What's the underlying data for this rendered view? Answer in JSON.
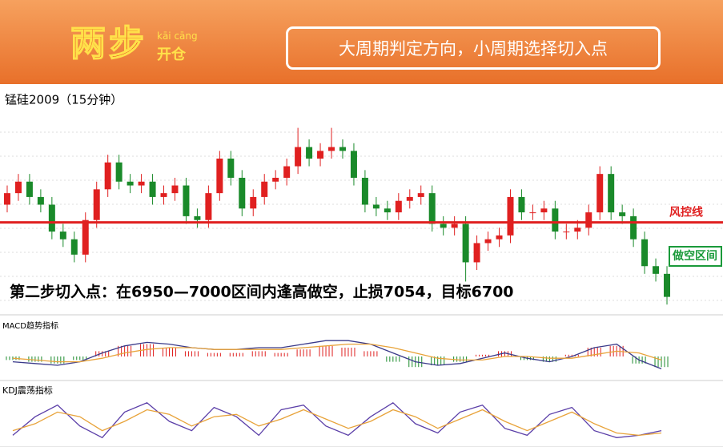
{
  "header": {
    "logo": "两步",
    "logo_pinyin": "kāi cāng",
    "logo_sub": "开仓",
    "slogan": "大周期判定方向，小周期选择切入点"
  },
  "chart_data": {
    "type": "candlestick",
    "title": "锰硅2009（15分钟）",
    "annotation": "第二步切入点：在6950—7000区间内逢高做空，止损7054，目标6700",
    "risk_line": {
      "label": "风控线",
      "value": 7054,
      "color": "#e02020"
    },
    "short_zone": {
      "label": "做空区间",
      "color": "#1a9a3a"
    },
    "up_color": "#e02020",
    "down_color": "#1a8a2a",
    "grid": true,
    "ylim": [
      6830,
      7320
    ],
    "open": [
      7100,
      7130,
      7160,
      7120,
      7100,
      7030,
      7010,
      6970,
      7060,
      7140,
      7210,
      7160,
      7150,
      7160,
      7120,
      7130,
      7150,
      7070,
      7060,
      7130,
      7220,
      7170,
      7090,
      7120,
      7160,
      7170,
      7200,
      7250,
      7220,
      7240,
      7250,
      7240,
      7170,
      7100,
      7090,
      7080,
      7110,
      7120,
      7130,
      7050,
      7040,
      7050,
      6950,
      7000,
      7010,
      7020,
      7120,
      7080,
      7080,
      7090,
      7030,
      7030,
      7040,
      7080,
      7180,
      7080,
      7070,
      7010,
      6940,
      6920
    ],
    "high": [
      7150,
      7180,
      7180,
      7140,
      7120,
      7050,
      7030,
      7080,
      7160,
      7230,
      7230,
      7180,
      7180,
      7180,
      7150,
      7170,
      7170,
      7090,
      7150,
      7240,
      7240,
      7190,
      7140,
      7180,
      7190,
      7220,
      7300,
      7270,
      7260,
      7300,
      7270,
      7260,
      7190,
      7120,
      7110,
      7130,
      7140,
      7150,
      7150,
      7070,
      7070,
      7070,
      7020,
      7030,
      7040,
      7140,
      7140,
      7100,
      7110,
      7110,
      7050,
      7060,
      7100,
      7200,
      7200,
      7100,
      7090,
      7030,
      6960,
      6940
    ],
    "low": [
      7080,
      7110,
      7100,
      7080,
      7010,
      6990,
      6950,
      6950,
      7040,
      7120,
      7140,
      7130,
      7130,
      7100,
      7100,
      7110,
      7050,
      7040,
      7040,
      7110,
      7150,
      7070,
      7070,
      7100,
      7140,
      7150,
      7180,
      7200,
      7200,
      7220,
      7220,
      7150,
      7080,
      7070,
      7060,
      7060,
      7090,
      7100,
      7030,
      7020,
      7020,
      6900,
      6930,
      6980,
      6990,
      7000,
      7060,
      7060,
      7060,
      7010,
      7010,
      7010,
      7020,
      7060,
      7060,
      7050,
      6990,
      6920,
      6900,
      6840
    ],
    "close": [
      7130,
      7160,
      7120,
      7100,
      7030,
      7010,
      6970,
      7060,
      7140,
      7210,
      7160,
      7150,
      7160,
      7120,
      7130,
      7150,
      7070,
      7060,
      7130,
      7220,
      7170,
      7090,
      7120,
      7160,
      7170,
      7200,
      7250,
      7220,
      7240,
      7250,
      7240,
      7170,
      7100,
      7090,
      7080,
      7110,
      7120,
      7130,
      7050,
      7040,
      7050,
      6950,
      7000,
      7010,
      7020,
      7120,
      7080,
      7080,
      7090,
      7030,
      7030,
      7040,
      7080,
      7180,
      7080,
      7070,
      7010,
      6940,
      6920,
      6860
    ],
    "macd": {
      "label": "MACD趋势指标",
      "ylim": [
        -10,
        10
      ],
      "hist": [
        -2,
        -3,
        -4,
        -2,
        3,
        6,
        7,
        5,
        3,
        2,
        2,
        3,
        2,
        4,
        6,
        5,
        3,
        -3,
        -6,
        -5,
        -3,
        1,
        3,
        -2,
        -3,
        1,
        5,
        6,
        -4,
        -6
      ],
      "series": [
        {
          "color": "#3a3a8a",
          "values": [
            -3,
            -4,
            -5,
            -3,
            2,
            6,
            8,
            7,
            5,
            4,
            4,
            5,
            5,
            7,
            9,
            9,
            7,
            2,
            -3,
            -5,
            -4,
            -1,
            2,
            -1,
            -3,
            0,
            5,
            7,
            -2,
            -7
          ]
        },
        {
          "color": "#e8a33a",
          "values": [
            -1,
            -2,
            -3,
            -3,
            -1,
            2,
            4,
            5,
            5,
            4,
            4,
            4,
            4,
            5,
            6,
            7,
            7,
            5,
            2,
            -1,
            -2,
            -2,
            0,
            0,
            -1,
            -1,
            1,
            3,
            2,
            -2
          ]
        }
      ]
    },
    "kdj": {
      "label": "KDJ震荡指标",
      "ylim": [
        0,
        100
      ],
      "series": [
        {
          "color": "#5b3fa8",
          "values": [
            20,
            60,
            85,
            40,
            15,
            70,
            90,
            50,
            30,
            80,
            60,
            20,
            75,
            85,
            40,
            20,
            60,
            90,
            45,
            25,
            70,
            85,
            35,
            20,
            65,
            80,
            30,
            15,
            20,
            30
          ]
        },
        {
          "color": "#e8a33a",
          "values": [
            30,
            45,
            70,
            60,
            30,
            50,
            75,
            65,
            40,
            60,
            65,
            40,
            55,
            75,
            55,
            35,
            50,
            75,
            60,
            35,
            55,
            75,
            50,
            30,
            50,
            70,
            45,
            25,
            20,
            25
          ]
        }
      ]
    }
  }
}
